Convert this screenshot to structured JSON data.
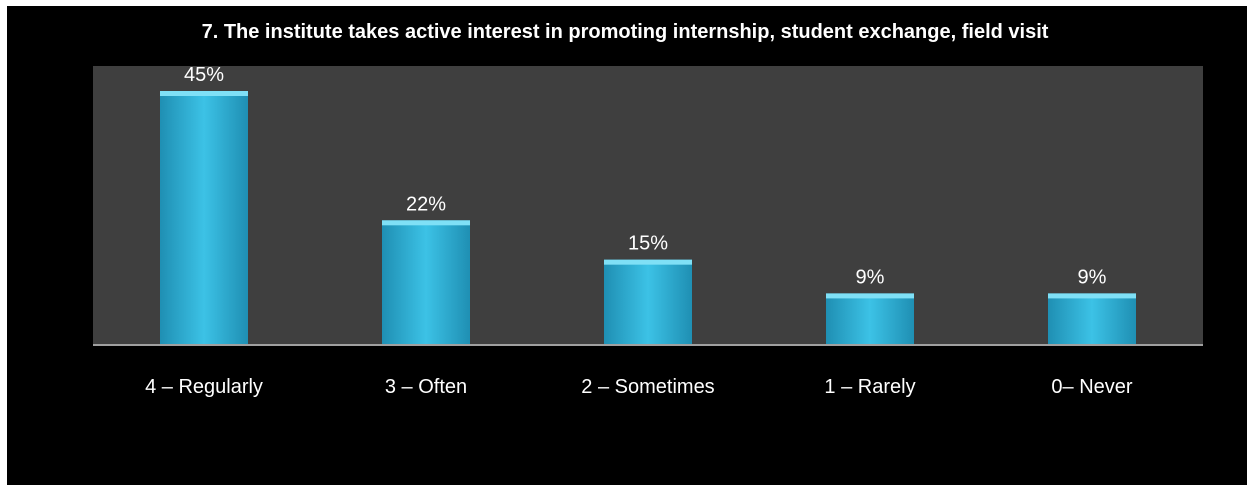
{
  "chart_data": {
    "type": "bar",
    "title": "7. The institute takes active interest in promoting internship, student exchange, field visit",
    "categories": [
      "4 – Regularly",
      "3 – Often",
      "2 – Sometimes",
      "1 – Rarely",
      "0– Never"
    ],
    "values": [
      45,
      22,
      15,
      9,
      9
    ],
    "data_labels": [
      "45%",
      "22%",
      "15%",
      "9%",
      "9%"
    ],
    "ylim": [
      0,
      45
    ],
    "grid": false,
    "legend": "none"
  },
  "colors": {
    "background": "#000000",
    "plot_area": "#3f3f3f",
    "bar_fill": "#35b6dc",
    "bar_top": "#7fe0f6",
    "text": "#ffffff"
  }
}
